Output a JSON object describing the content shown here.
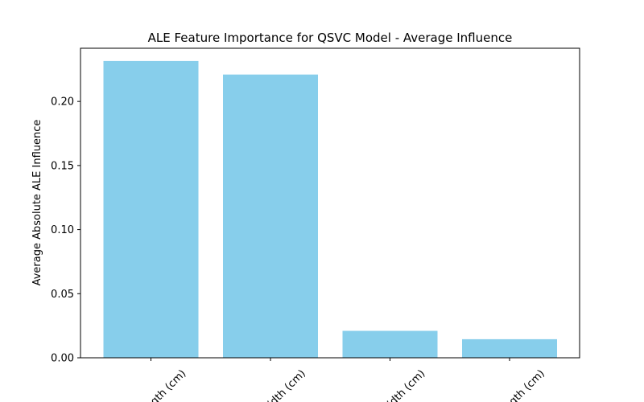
{
  "chart_data": {
    "type": "bar",
    "title": "ALE Feature Importance for QSVC Model - Average Influence",
    "xlabel": "",
    "ylabel": "Average Absolute ALE Influence",
    "categories": [
      "petal length (cm)",
      "petal width (cm)",
      "sepal width (cm)",
      "sepal length (cm)"
    ],
    "visible_category_fragments": [
      "ngth (cm)",
      "idth (cm)",
      "idth (cm)",
      "ngth (cm)"
    ],
    "values": [
      0.2315,
      0.221,
      0.021,
      0.0145
    ],
    "ylim": [
      0,
      0.2415
    ],
    "yticks": [
      0.0,
      0.05,
      0.1,
      0.15,
      0.2
    ],
    "ytick_labels": [
      "0.00",
      "0.05",
      "0.10",
      "0.15",
      "0.20"
    ],
    "bar_color": "#87ceeb",
    "grid": false
  }
}
